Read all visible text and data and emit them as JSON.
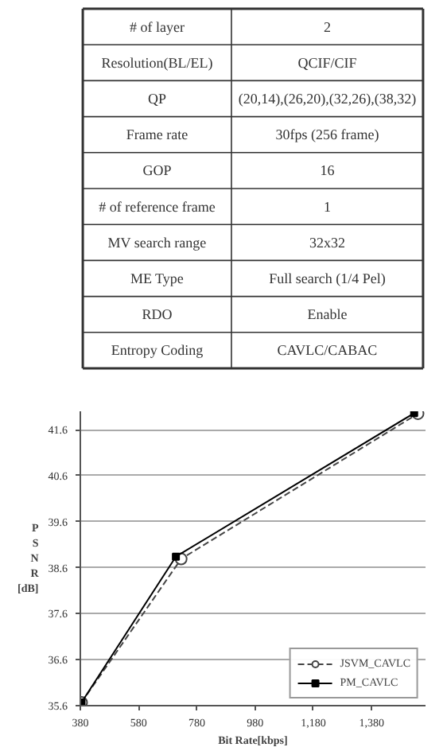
{
  "chart_data": [
    {
      "type": "other",
      "annotations": [
        "# of layer",
        "2",
        "Resolution(BL/EL)",
        "QCIF/CIF",
        "QP",
        "(20,14),(26,20),(32,26),(38,32)",
        "Frame rate",
        "30fps (256 frame)",
        "GOP",
        "16",
        "# of reference frame",
        "1",
        "MV search range",
        "32x32",
        "ME Type",
        "Full search (1/4 Pel)",
        "RDO",
        "Enable",
        "Entropy Coding",
        "CAVLC/CABAC"
      ]
    },
    {
      "type": "line",
      "xlabel": "Bit Rate[kbps]",
      "ylabel": "P S N R [dB]",
      "xlim": [
        380,
        1565
      ],
      "ylim": [
        35.6,
        42.0
      ],
      "xticks": [
        380,
        580,
        780,
        980,
        {
          "value": 1180,
          "label": "1,180"
        },
        {
          "value": 1380,
          "label": "1,380"
        }
      ],
      "yticks": [
        35.6,
        36.6,
        37.6,
        38.6,
        39.6,
        40.6,
        41.6
      ],
      "grid": "y",
      "legend": "bottom right",
      "series": [
        {
          "name": "JSVM_CAVLC",
          "color": "#444444",
          "x": [
            384,
            726,
            1539
          ],
          "values": [
            35.67,
            38.79,
            41.95
          ],
          "marker": "circle",
          "line_style": "dashed"
        },
        {
          "name": "PM_CAVLC",
          "color": "#000000",
          "x": [
            384,
            708,
            1526
          ],
          "values": [
            35.67,
            38.84,
            41.96
          ],
          "marker": "square",
          "line_style": "solid"
        }
      ]
    }
  ]
}
